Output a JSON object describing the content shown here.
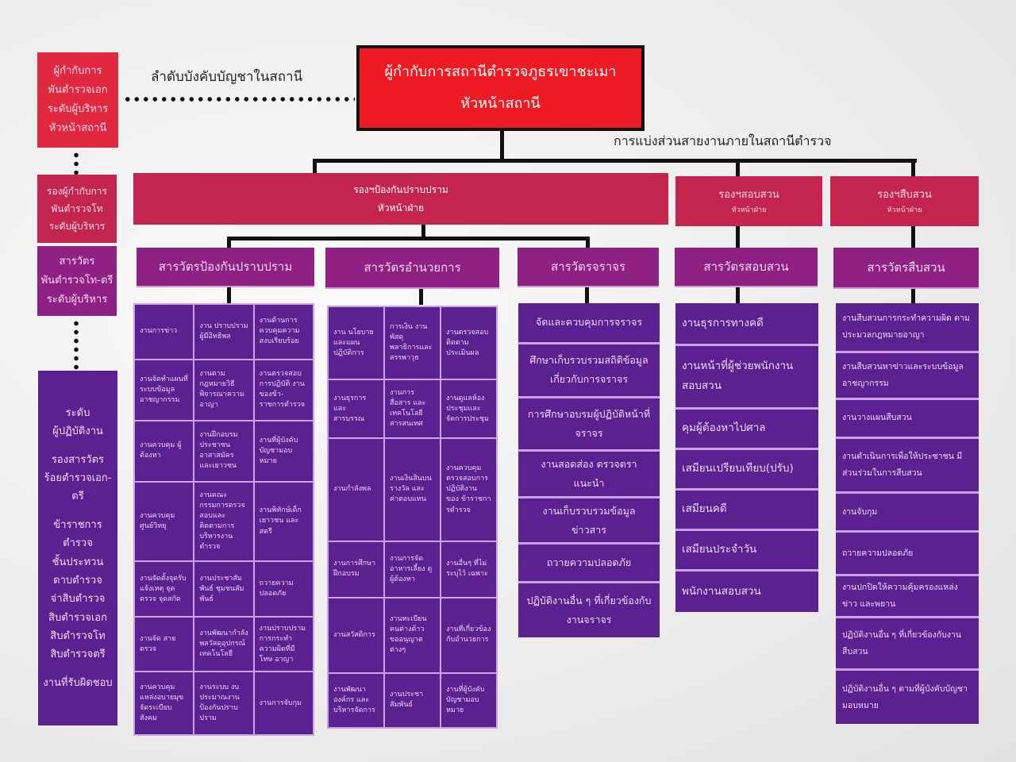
{
  "colors": {
    "red": "#e0283f",
    "top_box": "#ed1c24",
    "pink": "#c4254f",
    "magenta": "#8e2183",
    "purple": "#5c2190"
  },
  "left_legend": {
    "chief": [
      "ผู้กำกับการ",
      "พันตำรวจเอก",
      "ระดับผู้บริหาร",
      "หัวหน้าสถานี"
    ],
    "deputy": [
      "รองผู้กำกับการ",
      "พันตำรวจโท",
      "ระดับผู้บริหาร"
    ],
    "inspector": [
      "สารวัตร",
      "พันตำรวจโท-ตรี",
      "ระดับผู้บริหาร"
    ],
    "operator": [
      "ระดับ",
      "ผู้ปฏิบัติงาน",
      "",
      "รองสารวัตร",
      "ร้อยตำรวจเอก-",
      "ตรี",
      "",
      "ข้าราชการ",
      "ตำรวจ",
      "ชั้นประทวน",
      "ดาบตำรวจ",
      "จ่าสิบตำรวจ",
      "สิบตำรวจเอก",
      "สิบตำรวจโท",
      "สิบตำรวจตรี",
      "",
      "งานที่รับผิดชอบ"
    ]
  },
  "labels": {
    "chain_of_command": "ลำดับบังคับบัญชาในสถานี",
    "division": "การแบ่งส่วนสายงานภายในสถานีตำรวจ"
  },
  "top": {
    "title": "ผู้กำกับการสถานีตำรวจภูธรเขาชะเมา",
    "subtitle": "หัวหน้าสถานี"
  },
  "deputies": [
    {
      "title": "รองฯป้องกันปราบปราม",
      "subtitle": "หัวหน้าฝ่าย"
    },
    {
      "title": "รองฯสอบสวน",
      "subtitle": "หัวหน้าฝ่าย"
    },
    {
      "title": "รองฯสืบสวน",
      "subtitle": "หัวหน้าฝ่าย"
    }
  ],
  "sections": [
    "สารวัตรป้องกันปราบปราม",
    "สารวัตรอำนวยการ",
    "สารวัตรจราจร",
    "สารวัตรสอบสวน",
    "สารวัตรสืบสวน"
  ],
  "prevention_grid": [
    [
      "งานการข่าว",
      "งาน ปราบปราม ผู้มีอิทธิพล",
      "งานด้านการ ควบคุมความ สงบเรียบร้อย"
    ],
    [
      "งานจัดทำแผนที่ ระบบข้อมูล อาชญากรรม",
      "งานตาม กฎหมายวิธี พิจารณาความ อาญา",
      "งานตรวจสอบ การปฏิบัติ งานของข้า- ราชการตำรวจ"
    ],
    [
      "งานควบคุม ผู้ต้องหา",
      "งานฝึกอบรม ประชาชน อาสาสมัคร และเยาวชน",
      "งานที่ผู้บังคับ บัญชามอบ หมาย"
    ],
    [
      "งานควบคุม ศูนย์วิทยุ",
      "งานคณะ กรรมการตรวจ สอบและ ติดตามการ บริหารงาน ตำรวจ",
      "งานพิทักษ์เด็ก เยาวชน และ สตรี"
    ],
    [
      "งานจัดตั้งจุดรับ แจ้งเหตุ จุด ตรวจ จุดสกัด",
      "งานประชาสัม พันธ์ ชุมชนสัม พันธ์",
      "ถวายความ ปลอดภัย"
    ],
    [
      "งานจัด สายตรวจ",
      "งานพัฒนากำลัง พลวัสดุอุปกรณ์ เทคโนโลยี",
      "งานปราบปราม การกระทำ ความผิดที่มีโทษ อาญา"
    ],
    [
      "งานควบคุม แหล่งอบายมุข จัดระเบียบ สังคม",
      "งานระบบ งบประมาณงาน ป้องกันปราบ ปราม",
      "งานการจับกุม"
    ]
  ],
  "admin_grid": [
    [
      "งาน นโยบาย และแผน ปฏิบัติการ",
      "การเงิน งานพัสดุ พลาธิการและ สรรพาวุธ",
      "งานตรวจสอบ ติดตาม ประเมินผล"
    ],
    [
      "งานธุรการและ สารบรรณ",
      "งานการสื่อสาร และเทคโนโลยี สารสนเทศ",
      "งานดูแลห้อง ประชุมและ จัดการประชุม"
    ],
    [
      "งานกำลังพล",
      "งานเงินสินบน รางวัล และ ค่าตอบแทน",
      "งานควบคุม ตรวจสอบการ ปฏิบัติงาน ของ ข้าราชกา รตำรวจ"
    ],
    [
      "งานการศึกษา ฝึกอบรม",
      "งานการจัด อาหารเลี้ยง ดูผู้ต้องหา",
      "งานอื่นๆ ที่ไม่ระบุไว้ เฉพาะ"
    ],
    [
      "งานสวัสดิการ",
      "งานทะเบียน คนต่างด้าว ขออนุญาต ต่างๆ",
      "งานที่เกี่ยวข้อง กับอำนวยการ"
    ],
    [
      "งานพัฒนา องค์กร และ บริหารจัดการ",
      "งานประชา สัมพันธ์",
      "งานที่ผู้บังคับ บัญชามอบ หมาย"
    ]
  ],
  "traffic_list": [
    "จัดและควบคุมการจราจร",
    "ศึกษาเก็บรวบรวมสถิติข้อมูล เกี่ยวกับการจราจร",
    "การศึกษาอบรมผู้ปฏิบัติหน้าที่ จราจร",
    "งานสอดส่อง ตรวจตรา แนะนำ",
    "งานเก็บรวบรวมข้อมูล ข่าวสาร",
    "ถวายความปลอดภัย",
    "ปฏิบัติงานอื่น ๆ ที่เกี่ยวข้องกับ งานจราจร"
  ],
  "inquiry_list": [
    "งานธุรการทางคดี",
    "งานหน้าที่ผู้ช่วยพนักงาน สอบสวน",
    "คุมผู้ต้องหาไปศาล",
    "เสมียนเปรียบเทียบ(ปรับ)",
    "เสมียนคดี",
    "เสมียนประจำวัน",
    "พนักงานสอบสวน"
  ],
  "investigation_list": [
    "งานสืบสวนการกระทำความผิด ตามประมวลกฎหมายอาญา",
    "งานสืบสวนหาข่าวและระบบข้อมูล อาชญากรรม",
    "งานวางแผนสืบสวน",
    "งานดำเนินการเพื่อให้ประชาชน มีส่วนร่วมในการสืบสวน",
    "งานจับกุม",
    "ถวายความปลอดภัย",
    "งานปกปิดให้ความคุ้มครองแหล่งข่าว และพยาน",
    "ปฏิบัติงานอื่น ๆ ที่เกี่ยวข้องกับงาน สืบสวน",
    "ปฏิบัติงานอื่น ๆ ตามที่ผู้บังคับบัญชา มอบหมาย"
  ]
}
